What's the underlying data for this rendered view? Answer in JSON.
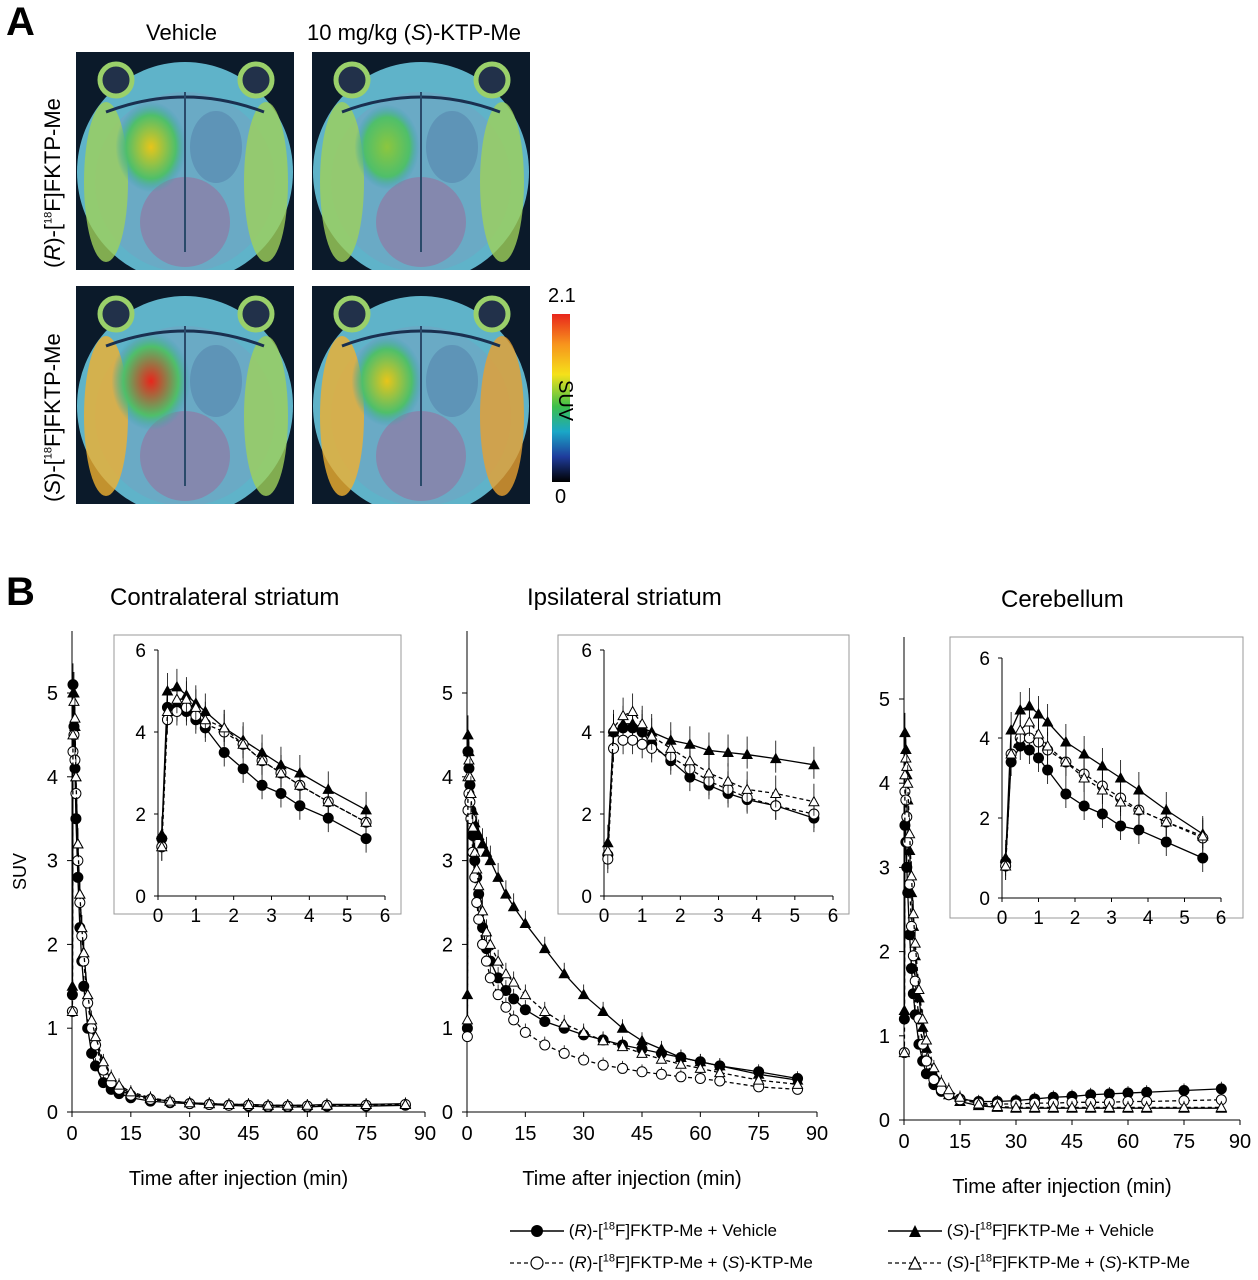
{
  "panel_a": {
    "label": "A",
    "col_headers": [
      "Vehicle",
      "10 mg/kg (S)-KTP-Me"
    ],
    "row_headers": [
      "(R)-[18F]FKTP-Me",
      "(S)-[18F]FKTP-Me"
    ],
    "colorbar": {
      "label": "SUV",
      "max": "2.1",
      "min": "0",
      "colors": [
        "#e8261c",
        "#f5e11a",
        "#3cbf4a",
        "#1aa7c7",
        "#000000"
      ]
    },
    "hotspot_intensity": [
      [
        0.55,
        0.25
      ],
      [
        0.95,
        0.55
      ]
    ]
  },
  "panel_b": {
    "label": "B"
  },
  "legend": [
    {
      "text": "(R)-[18F]FKTP-Me + Vehicle",
      "marker": "filled-circle",
      "line": "solid"
    },
    {
      "text": "(S)-[18F]FKTP-Me + Vehicle",
      "marker": "filled-triangle",
      "line": "solid"
    },
    {
      "text": "(R)-[18F]FKTP-Me + (S)-KTP-Me",
      "marker": "open-circle",
      "line": "dashed"
    },
    {
      "text": "(S)-[18F]FKTP-Me + (S)-KTP-Me",
      "marker": "open-triangle",
      "line": "dashed"
    }
  ],
  "chart_data": [
    {
      "type": "line",
      "title": "Contralateral striatum",
      "xlabel": "Time after injection (min)",
      "ylabel": "SUV",
      "xlim": [
        0,
        90
      ],
      "ylim": [
        0,
        5.5
      ],
      "xticks": [
        0,
        15,
        30,
        45,
        60,
        75,
        90
      ],
      "yticks": [
        0,
        1,
        2,
        3,
        4,
        5
      ],
      "x": [
        0.1,
        0.25,
        0.5,
        0.75,
        1,
        1.5,
        2,
        2.5,
        3,
        4,
        5,
        6,
        8,
        10,
        12,
        15,
        20,
        25,
        30,
        35,
        40,
        45,
        50,
        55,
        60,
        65,
        75,
        85
      ],
      "series": [
        {
          "name": "(R)-[18F]FKTP-Me + Vehicle",
          "values": [
            1.4,
            5.1,
            4.6,
            4.1,
            3.5,
            2.8,
            2.2,
            1.8,
            1.5,
            1.0,
            0.7,
            0.55,
            0.35,
            0.27,
            0.22,
            0.17,
            0.13,
            0.11,
            0.1,
            0.09,
            0.08,
            0.07,
            0.06,
            0.06,
            0.06,
            0.07,
            0.07,
            0.08
          ]
        },
        {
          "name": "(S)-[18F]FKTP-Me + Vehicle",
          "values": [
            1.5,
            5.0,
            5.0,
            4.6,
            4.0,
            3.2,
            2.6,
            2.2,
            1.9,
            1.4,
            1.05,
            0.85,
            0.55,
            0.38,
            0.3,
            0.22,
            0.16,
            0.13,
            0.11,
            0.1,
            0.09,
            0.09,
            0.08,
            0.08,
            0.08,
            0.09,
            0.09,
            0.1
          ]
        },
        {
          "name": "(R)-[18F]FKTP-Me + (S)-KTP-Me",
          "values": [
            1.2,
            4.3,
            4.5,
            4.2,
            3.8,
            3.0,
            2.5,
            2.1,
            1.8,
            1.3,
            1.0,
            0.8,
            0.5,
            0.35,
            0.27,
            0.2,
            0.15,
            0.12,
            0.1,
            0.09,
            0.08,
            0.08,
            0.07,
            0.07,
            0.07,
            0.08,
            0.08,
            0.09
          ]
        },
        {
          "name": "(S)-[18F]FKTP-Me + (S)-KTP-Me",
          "values": [
            1.2,
            4.5,
            4.9,
            4.7,
            4.0,
            3.2,
            2.6,
            2.2,
            1.9,
            1.4,
            1.1,
            0.9,
            0.6,
            0.42,
            0.32,
            0.24,
            0.17,
            0.13,
            0.11,
            0.1,
            0.09,
            0.09,
            0.08,
            0.08,
            0.08,
            0.08,
            0.09,
            0.09
          ]
        }
      ],
      "inset": {
        "xlim": [
          0,
          6
        ],
        "ylim": [
          0,
          6
        ],
        "xticks": [
          0,
          1,
          2,
          3,
          4,
          5,
          6
        ],
        "yticks": [
          0,
          2,
          4,
          6
        ],
        "x": [
          0.1,
          0.25,
          0.5,
          0.75,
          1,
          1.25,
          1.75,
          2.25,
          2.75,
          3.25,
          3.75,
          4.5,
          5.5
        ],
        "series": [
          {
            "values": [
              1.4,
              4.6,
              4.6,
              4.5,
              4.3,
              4.1,
              3.5,
              3.1,
              2.7,
              2.5,
              2.2,
              1.9,
              1.4
            ]
          },
          {
            "values": [
              1.5,
              5.0,
              5.1,
              4.9,
              4.7,
              4.5,
              4.1,
              3.8,
              3.5,
              3.2,
              3.0,
              2.6,
              2.1
            ]
          },
          {
            "values": [
              1.2,
              4.3,
              4.5,
              4.6,
              4.4,
              4.2,
              4.0,
              3.7,
              3.3,
              3.0,
              2.7,
              2.3,
              1.8
            ]
          },
          {
            "values": [
              1.2,
              4.5,
              4.8,
              4.8,
              4.6,
              4.3,
              4.1,
              3.7,
              3.3,
              3.0,
              2.7,
              2.3,
              1.8
            ]
          }
        ]
      }
    },
    {
      "type": "line",
      "title": "Ipsilateral striatum",
      "xlabel": "Time after injection (min)",
      "ylabel": "",
      "xlim": [
        0,
        90
      ],
      "ylim": [
        0,
        5.5
      ],
      "xticks": [
        0,
        15,
        30,
        45,
        60,
        75,
        90
      ],
      "yticks": [
        0,
        1,
        2,
        3,
        4,
        5
      ],
      "x": [
        0.1,
        0.25,
        0.5,
        0.75,
        1,
        1.5,
        2,
        2.5,
        3,
        4,
        5,
        6,
        8,
        10,
        12,
        15,
        20,
        25,
        30,
        35,
        40,
        45,
        50,
        55,
        60,
        65,
        75,
        85
      ],
      "series": [
        {
          "name": "(R)-[18F]FKTP-Me + Vehicle",
          "values": [
            1.0,
            4.3,
            4.1,
            3.9,
            3.6,
            3.3,
            3.0,
            2.8,
            2.6,
            2.2,
            1.95,
            1.8,
            1.6,
            1.45,
            1.35,
            1.22,
            1.08,
            1.0,
            0.92,
            0.86,
            0.8,
            0.75,
            0.7,
            0.65,
            0.6,
            0.55,
            0.48,
            0.4
          ]
        },
        {
          "name": "(S)-[18F]FKTP-Me + Vehicle",
          "values": [
            1.4,
            4.5,
            4.3,
            4.0,
            3.8,
            3.6,
            3.45,
            3.35,
            3.3,
            3.2,
            3.1,
            3.0,
            2.8,
            2.6,
            2.45,
            2.25,
            1.95,
            1.65,
            1.4,
            1.2,
            1.0,
            0.85,
            0.75,
            0.65,
            0.6,
            0.55,
            0.45,
            0.38
          ]
        },
        {
          "name": "(R)-[18F]FKTP-Me + (S)-KTP-Me",
          "values": [
            0.9,
            3.6,
            3.8,
            3.7,
            3.5,
            3.1,
            2.8,
            2.5,
            2.3,
            2.0,
            1.8,
            1.6,
            1.4,
            1.25,
            1.1,
            0.95,
            0.8,
            0.7,
            0.62,
            0.56,
            0.52,
            0.48,
            0.45,
            0.42,
            0.4,
            0.37,
            0.3,
            0.27
          ]
        },
        {
          "name": "(S)-[18F]FKTP-Me + (S)-KTP-Me",
          "values": [
            1.1,
            4.0,
            4.2,
            4.0,
            3.8,
            3.4,
            3.1,
            2.9,
            2.7,
            2.4,
            2.15,
            2.0,
            1.8,
            1.65,
            1.55,
            1.4,
            1.2,
            1.05,
            0.95,
            0.85,
            0.78,
            0.7,
            0.63,
            0.57,
            0.52,
            0.47,
            0.38,
            0.33
          ]
        }
      ],
      "inset": {
        "xlim": [
          0,
          6
        ],
        "ylim": [
          0,
          6
        ],
        "xticks": [
          0,
          1,
          2,
          3,
          4,
          5,
          6
        ],
        "yticks": [
          0,
          2,
          4,
          6
        ],
        "x": [
          0.1,
          0.25,
          0.5,
          0.75,
          1,
          1.25,
          1.75,
          2.25,
          2.75,
          3.25,
          3.75,
          4.5,
          5.5
        ],
        "series": [
          {
            "values": [
              1.0,
              4.0,
              4.1,
              4.1,
              4.0,
              3.7,
              3.3,
              2.9,
              2.7,
              2.5,
              2.35,
              2.2,
              1.9
            ]
          },
          {
            "values": [
              1.3,
              4.0,
              4.2,
              4.2,
              4.1,
              4.0,
              3.8,
              3.7,
              3.55,
              3.5,
              3.45,
              3.35,
              3.2
            ]
          },
          {
            "values": [
              0.9,
              3.6,
              3.8,
              3.8,
              3.7,
              3.6,
              3.4,
              3.1,
              2.8,
              2.6,
              2.4,
              2.2,
              2.0
            ]
          },
          {
            "values": [
              1.1,
              4.1,
              4.4,
              4.5,
              4.2,
              3.9,
              3.6,
              3.3,
              3.0,
              2.8,
              2.6,
              2.5,
              2.3
            ]
          }
        ]
      }
    },
    {
      "type": "line",
      "title": "Cerebellum",
      "xlabel": "Time after injection (min)",
      "ylabel": "",
      "xlim": [
        0,
        90
      ],
      "ylim": [
        0,
        5.5
      ],
      "xticks": [
        0,
        15,
        30,
        45,
        60,
        75,
        90
      ],
      "yticks": [
        0,
        1,
        2,
        3,
        4,
        5
      ],
      "x": [
        0.1,
        0.25,
        0.5,
        0.75,
        1,
        1.5,
        2,
        2.5,
        3,
        4,
        5,
        6,
        8,
        10,
        12,
        15,
        20,
        25,
        30,
        35,
        40,
        45,
        50,
        55,
        60,
        65,
        75,
        85
      ],
      "series": [
        {
          "name": "(R)-[18F]FKTP-Me + Vehicle",
          "values": [
            1.2,
            3.5,
            3.3,
            3.0,
            2.7,
            2.2,
            1.8,
            1.5,
            1.25,
            0.9,
            0.7,
            0.55,
            0.42,
            0.34,
            0.3,
            0.25,
            0.22,
            0.22,
            0.23,
            0.25,
            0.27,
            0.28,
            0.3,
            0.31,
            0.32,
            0.33,
            0.35,
            0.37
          ]
        },
        {
          "name": "(S)-[18F]FKTP-Me + Vehicle",
          "values": [
            1.3,
            4.6,
            4.4,
            4.1,
            3.8,
            3.2,
            2.7,
            2.3,
            1.95,
            1.45,
            1.1,
            0.85,
            0.55,
            0.4,
            0.3,
            0.22,
            0.17,
            0.15,
            0.14,
            0.14,
            0.14,
            0.14,
            0.14,
            0.14,
            0.14,
            0.14,
            0.14,
            0.14
          ]
        },
        {
          "name": "(R)-[18F]FKTP-Me + (S)-KTP-Me",
          "values": [
            0.8,
            3.9,
            3.8,
            3.6,
            3.3,
            2.8,
            2.3,
            1.95,
            1.65,
            1.2,
            0.9,
            0.7,
            0.48,
            0.36,
            0.3,
            0.24,
            0.2,
            0.19,
            0.19,
            0.2,
            0.2,
            0.21,
            0.21,
            0.21,
            0.22,
            0.22,
            0.23,
            0.24
          ]
        },
        {
          "name": "(S)-[18F]FKTP-Me + (S)-KTP-Me",
          "values": [
            0.8,
            4.1,
            4.3,
            4.2,
            4.0,
            3.4,
            2.9,
            2.45,
            2.1,
            1.55,
            1.2,
            0.95,
            0.62,
            0.45,
            0.36,
            0.27,
            0.19,
            0.16,
            0.15,
            0.15,
            0.15,
            0.15,
            0.15,
            0.15,
            0.15,
            0.15,
            0.15,
            0.15
          ]
        }
      ],
      "inset": {
        "xlim": [
          0,
          6
        ],
        "ylim": [
          0,
          6
        ],
        "xticks": [
          0,
          1,
          2,
          3,
          4,
          5,
          6
        ],
        "yticks": [
          0,
          2,
          4,
          6
        ],
        "x": [
          0.1,
          0.25,
          0.5,
          0.75,
          1,
          1.25,
          1.75,
          2.25,
          2.75,
          3.25,
          3.75,
          4.5,
          5.5
        ],
        "series": [
          {
            "values": [
              0.9,
              3.4,
              3.8,
              3.7,
              3.5,
              3.2,
              2.6,
              2.3,
              2.1,
              1.8,
              1.7,
              1.4,
              1.0
            ]
          },
          {
            "values": [
              1.0,
              4.2,
              4.7,
              4.8,
              4.6,
              4.4,
              3.9,
              3.6,
              3.3,
              3.0,
              2.7,
              2.2,
              1.6
            ]
          },
          {
            "values": [
              0.8,
              3.6,
              4.0,
              4.0,
              3.9,
              3.7,
              3.4,
              3.1,
              2.8,
              2.5,
              2.2,
              1.9,
              1.5
            ]
          },
          {
            "values": [
              0.8,
              3.6,
              4.2,
              4.4,
              4.1,
              3.8,
              3.4,
              3.0,
              2.7,
              2.4,
              2.2,
              1.9,
              1.55
            ]
          }
        ]
      }
    }
  ]
}
